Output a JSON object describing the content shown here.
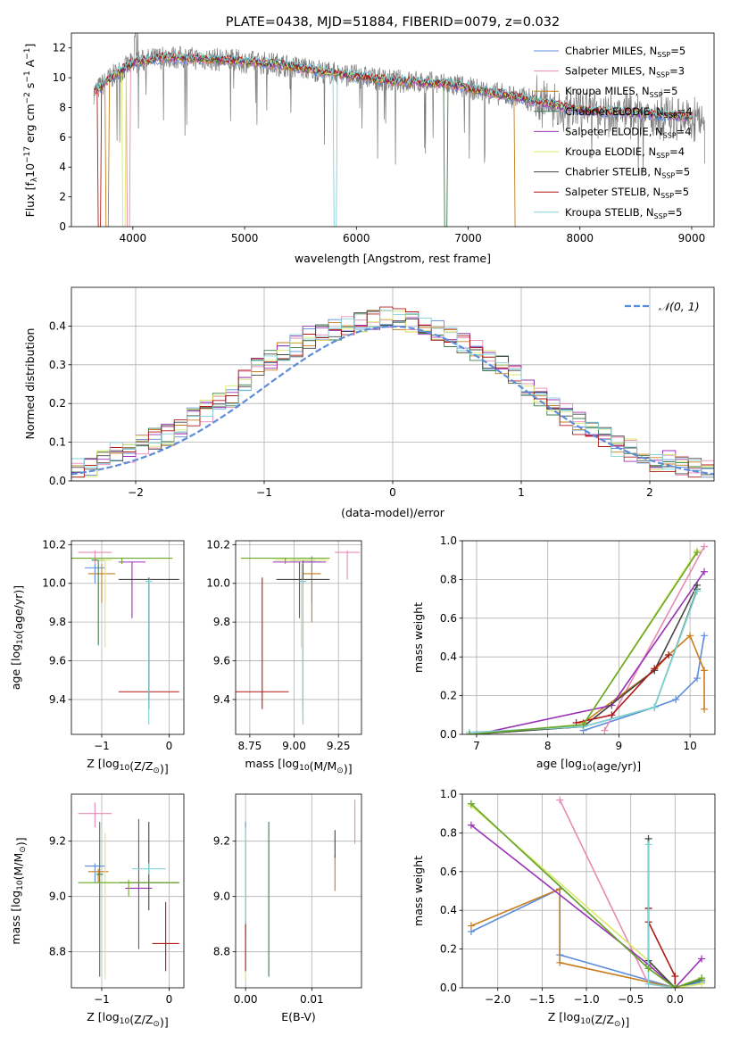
{
  "chart_data": [
    {
      "id": "spectrum",
      "type": "line",
      "title": "PLATE=0438, MJD=51884, FIBERID=0079, z=0.032",
      "xlabel": "wavelength [Angstrom, rest frame]",
      "ylabel": "Flux [f$_\\lambda$10$^{-17}$ erg cm$^{-2}$ s$^{-1}$ A$^{-1}$]",
      "ylabel_parts": {
        "base": "Flux [f",
        "sub": "λ",
        "mid": "10",
        "sup1": "−17",
        "rest": " erg cm",
        "sup2": "−2",
        "s": " s",
        "sup3": "−1",
        "A": " A",
        "sup4": "−1",
        "end": "]"
      },
      "xlim": [
        3450,
        9200
      ],
      "ylim": [
        0,
        13
      ],
      "xticks": [
        4000,
        5000,
        6000,
        7000,
        8000,
        9000
      ],
      "yticks": [
        0,
        2,
        4,
        6,
        8,
        10,
        12
      ],
      "continuum_x": [
        3650,
        3800,
        4000,
        4300,
        4800,
        5300,
        5800,
        6300,
        6800,
        7200,
        7500,
        8000,
        8500,
        9100
      ],
      "continuum_y": [
        9.0,
        10.0,
        11.0,
        11.4,
        11.2,
        10.9,
        10.3,
        9.8,
        9.6,
        9.0,
        8.6,
        7.8,
        7.6,
        7.3
      ],
      "legend": [
        {
          "label": "Chabrier MILES, N",
          "sub": "SSP",
          "suffix": "=5",
          "color": "#5b8ddb"
        },
        {
          "label": "Salpeter MILES, N",
          "sub": "SSP",
          "suffix": "=3",
          "color": "#e88ab6"
        },
        {
          "label": "Kroupa MILES, N",
          "sub": "SSP",
          "suffix": "=5",
          "color": "#c77d1e"
        },
        {
          "label": "Chabrier ELODIE, N",
          "sub": "SSP",
          "suffix": "=4",
          "color": "#3f7a4f"
        },
        {
          "label": "Salpeter ELODIE, N",
          "sub": "SSP",
          "suffix": "=4",
          "color": "#9b30b8"
        },
        {
          "label": "Kroupa ELODIE, N",
          "sub": "SSP",
          "suffix": "=4",
          "color": "#d9e86a"
        },
        {
          "label": "Chabrier STELIB, N",
          "sub": "SSP",
          "suffix": "=5",
          "color": "#444444"
        },
        {
          "label": "Salpeter STELIB, N",
          "sub": "SSP",
          "suffix": "=5",
          "color": "#b01818"
        },
        {
          "label": "Kroupa STELIB, N",
          "sub": "SSP",
          "suffix": "=5",
          "color": "#7fd3d8"
        }
      ]
    },
    {
      "id": "residuals",
      "type": "line",
      "xlabel": "(data-model)/error",
      "ylabel": "Normed distribution",
      "xlim": [
        -2.5,
        2.5
      ],
      "ylim": [
        0,
        0.5
      ],
      "xticks": [
        -2,
        -1,
        0,
        1,
        2
      ],
      "xtick_labels": [
        "−2",
        "−1",
        "0",
        "1",
        "2"
      ],
      "yticks": [
        0.0,
        0.1,
        0.2,
        0.3,
        0.4
      ],
      "ytick_labels": [
        "0.0",
        "0.1",
        "0.2",
        "0.3",
        "0.4"
      ],
      "grid": true,
      "gaussian_legend": "𝒩(0, 1)",
      "gaussian_color": "#5b8ddb",
      "bin_width": 0.1,
      "hist_approx": [
        0.03,
        0.03,
        0.04,
        0.05,
        0.06,
        0.07,
        0.07,
        0.08,
        0.09,
        0.1,
        0.11,
        0.12,
        0.13,
        0.14,
        0.15,
        0.16,
        0.18,
        0.19,
        0.21,
        0.22,
        0.24,
        0.26,
        0.27,
        0.29,
        0.31,
        0.32,
        0.33,
        0.35,
        0.36,
        0.37,
        0.38,
        0.39,
        0.39,
        0.4,
        0.4,
        0.41,
        0.41,
        0.42,
        0.42,
        0.42,
        0.42,
        0.41,
        0.41,
        0.4,
        0.4,
        0.39,
        0.38,
        0.37,
        0.36,
        0.35,
        0.34,
        0.33,
        0.31,
        0.3,
        0.28,
        0.27,
        0.25,
        0.23,
        0.22,
        0.2,
        0.19,
        0.17,
        0.16,
        0.15,
        0.13,
        0.12,
        0.11,
        0.1,
        0.09,
        0.08,
        0.08,
        0.07,
        0.06,
        0.05,
        0.05,
        0.04,
        0.04,
        0.03,
        0.03,
        0.03
      ]
    },
    {
      "id": "age_vs_Z",
      "type": "scatter",
      "xlabel": "Z [log$_{10}$(Z/Z$_\\odot$)]",
      "ylabel": "age [log$_{10}$(age/yr)]",
      "xlim": [
        -1.45,
        0.22
      ],
      "ylim": [
        9.22,
        10.22
      ],
      "xticks": [
        -1,
        0
      ],
      "xtick_labels": [
        "−1",
        "0"
      ],
      "yticks": [
        9.4,
        9.6,
        9.8,
        10.0,
        10.2
      ],
      "ytick_labels": [
        "9.4",
        "9.6",
        "9.8",
        "10.0",
        "10.2"
      ],
      "points": [
        {
          "x": -1.1,
          "y": 10.08,
          "xerr": 0.15,
          "ylo": 10.0,
          "yhi": 10.1,
          "color": "#5b8ddb"
        },
        {
          "x": -1.1,
          "y": 10.16,
          "xerr": 0.25,
          "ylo": 10.1,
          "yhi": 10.17,
          "color": "#e88ab6"
        },
        {
          "x": -1.0,
          "y": 10.05,
          "xerr": 0.2,
          "ylo": 9.9,
          "yhi": 10.1,
          "color": "#c77d1e"
        },
        {
          "x": -1.05,
          "y": 10.12,
          "xerr": 0.1,
          "ylo": 9.68,
          "yhi": 10.12,
          "color": "#3f7a4f"
        },
        {
          "x": -0.55,
          "y": 10.11,
          "xerr": 0.2,
          "ylo": 9.82,
          "yhi": 10.11,
          "color": "#9b30b8"
        },
        {
          "x": -0.95,
          "y": 10.12,
          "xerr": 0.1,
          "ylo": 9.67,
          "yhi": 10.12,
          "color": "#d9e86a"
        },
        {
          "x": -0.3,
          "y": 10.02,
          "xerr": 0.45,
          "ylo": 9.35,
          "yhi": 10.03,
          "color": "#444444"
        },
        {
          "x": -0.3,
          "y": 9.44,
          "xerr": 0.45,
          "ylo": 9.4,
          "yhi": 10.0,
          "color": "#b01818"
        },
        {
          "x": -0.3,
          "y": 10.01,
          "xerr": 0.05,
          "ylo": 9.27,
          "yhi": 10.02,
          "color": "#7fd3d8"
        },
        {
          "x": -0.7,
          "y": 10.13,
          "xerr": 0.75,
          "ylo": 10.1,
          "yhi": 10.13,
          "color": "#6aa82a"
        }
      ]
    },
    {
      "id": "age_vs_mass",
      "type": "scatter",
      "xlabel": "mass [log$_{10}$(M/M$_\\odot$)]",
      "xlim": [
        8.67,
        9.38
      ],
      "ylim": [
        9.22,
        10.22
      ],
      "xticks": [
        8.75,
        9.0,
        9.25
      ],
      "xtick_labels": [
        "8.75",
        "9.00",
        "9.25"
      ],
      "yticks": [
        9.4,
        9.6,
        9.8,
        10.0,
        10.2
      ],
      "ytick_labels": [
        "9.4",
        "9.6",
        "9.8",
        "10.0",
        "10.2"
      ],
      "points": [
        {
          "x": 9.1,
          "y": 10.11,
          "xerr": 0.05,
          "ylo": 9.9,
          "yhi": 10.14,
          "color": "#5b8ddb"
        },
        {
          "x": 9.3,
          "y": 10.16,
          "xerr": 0.07,
          "ylo": 10.02,
          "yhi": 10.17,
          "color": "#e88ab6"
        },
        {
          "x": 9.1,
          "y": 10.05,
          "xerr": 0.05,
          "ylo": 9.8,
          "yhi": 10.1,
          "color": "#c77d1e"
        },
        {
          "x": 9.05,
          "y": 10.12,
          "xerr": 0.07,
          "ylo": 9.28,
          "yhi": 10.12,
          "color": "#3f7a4f"
        },
        {
          "x": 9.03,
          "y": 10.11,
          "xerr": 0.15,
          "ylo": 9.82,
          "yhi": 10.11,
          "color": "#9b30b8"
        },
        {
          "x": 9.04,
          "y": 10.12,
          "xerr": 0.15,
          "ylo": 9.67,
          "yhi": 10.12,
          "color": "#d9e86a"
        },
        {
          "x": 9.05,
          "y": 10.02,
          "xerr": 0.15,
          "ylo": 9.35,
          "yhi": 10.1,
          "color": "#444444"
        },
        {
          "x": 8.82,
          "y": 9.44,
          "xerr": 0.15,
          "ylo": 9.35,
          "yhi": 10.03,
          "color": "#b01818"
        },
        {
          "x": 9.05,
          "y": 10.01,
          "xerr": 0.02,
          "ylo": 9.27,
          "yhi": 10.02,
          "color": "#7fd3d8"
        },
        {
          "x": 8.95,
          "y": 10.13,
          "xerr": 0.25,
          "ylo": 10.1,
          "yhi": 10.13,
          "color": "#6aa82a"
        }
      ]
    },
    {
      "id": "weight_vs_age",
      "type": "line",
      "xlabel": "age [log$_{10}$(age/yr)]",
      "ylabel": "mass weight",
      "xlim": [
        6.8,
        10.35
      ],
      "ylim": [
        0,
        1
      ],
      "xticks": [
        7,
        8,
        9,
        10
      ],
      "xtick_labels": [
        "7",
        "8",
        "9",
        "10"
      ],
      "yticks": [
        0,
        0.2,
        0.4,
        0.6,
        0.8,
        1.0
      ],
      "ytick_labels": [
        "0.0",
        "0.2",
        "0.4",
        "0.6",
        "0.8",
        "1.0"
      ],
      "grid": true,
      "series": [
        {
          "color": "#5b8ddb",
          "x": [
            8.5,
            9.5,
            9.8,
            10.1,
            10.2
          ],
          "y": [
            0.02,
            0.14,
            0.18,
            0.29,
            0.51
          ]
        },
        {
          "color": "#e88ab6",
          "x": [
            8.8,
            10.2
          ],
          "y": [
            0.02,
            0.97
          ]
        },
        {
          "color": "#c77d1e",
          "x": [
            8.5,
            9.5,
            9.7,
            10.0,
            10.2,
            10.2
          ],
          "y": [
            0.06,
            0.33,
            0.41,
            0.51,
            0.33,
            0.13
          ]
        },
        {
          "color": "#3f7a4f",
          "x": [
            6.9,
            8.5,
            9.5,
            10.1
          ],
          "y": [
            0.0,
            0.04,
            0.14,
            0.75
          ]
        },
        {
          "color": "#9b30b8",
          "x": [
            7.0,
            8.9,
            10.2
          ],
          "y": [
            0.0,
            0.15,
            0.84
          ]
        },
        {
          "color": "#d9e86a",
          "x": [
            6.9,
            8.5,
            10.1
          ],
          "y": [
            0.0,
            0.05,
            0.95
          ]
        },
        {
          "color": "#444444",
          "x": [
            6.9,
            8.5,
            9.5,
            10.1
          ],
          "y": [
            0.0,
            0.04,
            0.33,
            0.77
          ]
        },
        {
          "color": "#b01818",
          "x": [
            8.4,
            8.9,
            9.5,
            9.7
          ],
          "y": [
            0.06,
            0.1,
            0.34,
            0.41
          ]
        },
        {
          "color": "#7fd3d8",
          "x": [
            6.9,
            8.5,
            9.5,
            10.1
          ],
          "y": [
            0.01,
            0.04,
            0.14,
            0.74
          ]
        },
        {
          "color": "#6aa82a",
          "x": [
            6.9,
            8.5,
            10.1
          ],
          "y": [
            0.0,
            0.05,
            0.94
          ]
        }
      ]
    },
    {
      "id": "mass_vs_Z",
      "type": "scatter",
      "xlabel": "Z [log$_{10}$(Z/Z$_\\odot$)]",
      "ylabel": "mass [log$_{10}$(M/M$_\\odot$)]",
      "xlim": [
        -1.45,
        0.22
      ],
      "ylim": [
        8.67,
        9.37
      ],
      "xticks": [
        -1,
        0
      ],
      "xtick_labels": [
        "−1",
        "0"
      ],
      "yticks": [
        8.8,
        9.0,
        9.2
      ],
      "ytick_labels": [
        "8.8",
        "9.0",
        "9.2"
      ],
      "points": [
        {
          "x": -1.1,
          "y": 9.11,
          "xerr": 0.15,
          "ylo": 9.05,
          "yhi": 9.12,
          "color": "#5b8ddb"
        },
        {
          "x": -1.1,
          "y": 9.3,
          "xerr": 0.25,
          "ylo": 9.25,
          "yhi": 9.34,
          "color": "#e88ab6"
        },
        {
          "x": -1.05,
          "y": 9.09,
          "xerr": 0.15,
          "ylo": 9.05,
          "yhi": 9.1,
          "color": "#c77d1e"
        },
        {
          "x": -1.03,
          "y": 9.08,
          "xerr": 0.05,
          "ylo": 8.71,
          "yhi": 9.27,
          "color": "#3f7a4f"
        },
        {
          "x": -0.45,
          "y": 9.03,
          "xerr": 0.2,
          "ylo": 8.81,
          "yhi": 9.28,
          "color": "#9b30b8"
        },
        {
          "x": -0.95,
          "y": 9.05,
          "xerr": 0.15,
          "ylo": 8.7,
          "yhi": 9.23,
          "color": "#d9e86a"
        },
        {
          "x": -0.3,
          "y": 9.05,
          "xerr": 0.45,
          "ylo": 8.95,
          "yhi": 9.27,
          "color": "#444444"
        },
        {
          "x": -0.05,
          "y": 8.83,
          "xerr": 0.2,
          "ylo": 8.73,
          "yhi": 8.98,
          "color": "#b01818"
        },
        {
          "x": -0.3,
          "y": 9.1,
          "xerr": 0.25,
          "ylo": 9.08,
          "yhi": 9.12,
          "color": "#7fd3d8"
        },
        {
          "x": -0.6,
          "y": 9.05,
          "xerr": 0.75,
          "ylo": 9.0,
          "yhi": 9.06,
          "color": "#6aa82a"
        }
      ]
    },
    {
      "id": "mass_vs_ebv",
      "type": "scatter",
      "xlabel": "E(B-V)",
      "xlim": [
        -0.0015,
        0.0175
      ],
      "ylim": [
        8.67,
        9.37
      ],
      "xticks": [
        0.0,
        0.01
      ],
      "xtick_labels": [
        "0.00",
        "0.01"
      ],
      "yticks": [
        8.8,
        9.0,
        9.2
      ],
      "ytick_labels": [
        "8.8",
        "9.0",
        "9.2"
      ],
      "points": [
        {
          "x": 0.0,
          "y": 9.11,
          "ylo": 8.85,
          "yhi": 9.27,
          "color": "#5b8ddb"
        },
        {
          "x": 0.0165,
          "y": 9.3,
          "ylo": 9.19,
          "yhi": 9.35,
          "color": "#e88ab6"
        },
        {
          "x": 0.0135,
          "y": 9.09,
          "ylo": 9.02,
          "yhi": 9.15,
          "color": "#c77d1e"
        },
        {
          "x": 0.0035,
          "y": 9.08,
          "ylo": 8.71,
          "yhi": 9.27,
          "color": "#3f7a4f"
        },
        {
          "x": 0.0,
          "y": 9.03,
          "ylo": 8.9,
          "yhi": 9.2,
          "color": "#9b30b8"
        },
        {
          "x": 0.0,
          "y": 9.05,
          "ylo": 8.7,
          "yhi": 9.23,
          "color": "#d9e86a"
        },
        {
          "x": 0.0135,
          "y": 9.2,
          "ylo": 9.14,
          "yhi": 9.24,
          "color": "#444444"
        },
        {
          "x": 0.0,
          "y": 8.83,
          "ylo": 8.73,
          "yhi": 8.91,
          "color": "#b01818"
        },
        {
          "x": 0.0,
          "y": 9.1,
          "ylo": 8.9,
          "yhi": 9.25,
          "color": "#7fd3d8"
        }
      ]
    },
    {
      "id": "weight_vs_Z",
      "type": "line",
      "xlabel": "Z [log$_{10}$(Z/Z$_\\odot$)]",
      "ylabel": "mass weight",
      "xlim": [
        -2.4,
        0.45
      ],
      "ylim": [
        0,
        1
      ],
      "xticks": [
        -2.0,
        -1.5,
        -1.0,
        -0.5,
        0.0
      ],
      "xtick_labels": [
        "−2.0",
        "−1.5",
        "−1.0",
        "−0.5",
        "0.0"
      ],
      "yticks": [
        0,
        0.2,
        0.4,
        0.6,
        0.8,
        1.0
      ],
      "ytick_labels": [
        "0.0",
        "0.2",
        "0.4",
        "0.6",
        "0.8",
        "1.0"
      ],
      "grid": true,
      "series": [
        {
          "color": "#5b8ddb",
          "x": [
            -2.3,
            -1.3,
            -1.3,
            0.0,
            0.3
          ],
          "y": [
            0.29,
            0.51,
            0.17,
            0.0,
            0.03
          ]
        },
        {
          "color": "#e88ab6",
          "x": [
            -1.3,
            -0.3,
            0.0
          ],
          "y": [
            0.97,
            0.02,
            0.0
          ]
        },
        {
          "color": "#c77d1e",
          "x": [
            -2.3,
            -1.3,
            -1.3,
            0.0,
            0.3
          ],
          "y": [
            0.32,
            0.51,
            0.13,
            0.0,
            0.05
          ]
        },
        {
          "color": "#3f7a4f",
          "x": [
            -2.3,
            -0.3,
            0.0,
            0.3
          ],
          "y": [
            0.95,
            0.1,
            0.0,
            0.04
          ]
        },
        {
          "color": "#9b30b8",
          "x": [
            -2.3,
            -0.3,
            0.0,
            0.3
          ],
          "y": [
            0.84,
            0.12,
            0.0,
            0.15
          ]
        },
        {
          "color": "#d9e86a",
          "x": [
            -2.3,
            -0.3,
            0.0,
            0.3
          ],
          "y": [
            0.94,
            0.14,
            0.0,
            0.02
          ]
        },
        {
          "color": "#444444",
          "x": [
            -0.3,
            -0.3,
            -0.3,
            0.0
          ],
          "y": [
            0.77,
            0.41,
            0.14,
            0.0
          ]
        },
        {
          "color": "#b01818",
          "x": [
            -0.3,
            -0.3,
            0.0,
            0.0
          ],
          "y": [
            0.41,
            0.34,
            0.06,
            0.0
          ]
        },
        {
          "color": "#7fd3d8",
          "x": [
            -0.3,
            -0.3,
            0.0
          ],
          "y": [
            0.74,
            0.02,
            0.0
          ]
        },
        {
          "color": "#6aa82a",
          "x": [
            -2.3,
            -0.3,
            0.0,
            0.3
          ],
          "y": [
            0.95,
            0.1,
            0.0,
            0.05
          ]
        }
      ]
    }
  ]
}
